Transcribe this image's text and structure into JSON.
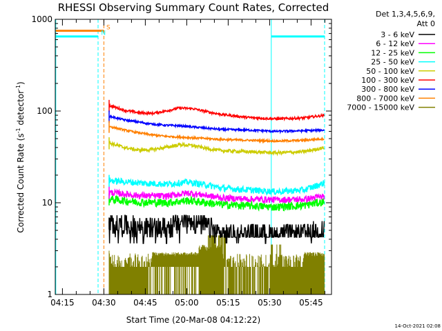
{
  "chart_data": {
    "type": "line",
    "title": "RHESSI Observing Summary Count Rates, Corrected",
    "xlabel": "Start Time (20-Mar-08 04:12:22)",
    "ylabel_parts": {
      "pre": "Corrected Count Rate (s",
      "sup1": "-1",
      "mid": " detector",
      "sup2": "-1",
      "post": ")"
    },
    "xlim_min": [
      0,
      100
    ],
    "ylim": [
      1,
      1000
    ],
    "yscale": "log",
    "x_ticks": [
      {
        "label": "04:15",
        "min": 2.6
      },
      {
        "label": "04:30",
        "min": 17.6
      },
      {
        "label": "04:45",
        "min": 32.6
      },
      {
        "label": "05:00",
        "min": 47.6
      },
      {
        "label": "05:15",
        "min": 62.6
      },
      {
        "label": "05:30",
        "min": 77.6
      },
      {
        "label": "05:45",
        "min": 92.6
      }
    ],
    "y_tick_labels": [
      {
        "label": "1",
        "value": 1
      },
      {
        "label": "10",
        "value": 10
      },
      {
        "label": "100",
        "value": 100
      },
      {
        "label": "1000",
        "value": 1000
      }
    ],
    "legend": {
      "header": [
        "Det 1,3,4,5,6,9,",
        "Att 0"
      ],
      "location": "top-right, outside plot"
    },
    "series": [
      {
        "name": "3 - 6 keV",
        "color": "#000000",
        "noise": 0.28,
        "points": [
          [
            19.5,
            6.0
          ],
          [
            30,
            5.6
          ],
          [
            40,
            5.3
          ],
          [
            48,
            6.6
          ],
          [
            55,
            5.6
          ],
          [
            60,
            4.6
          ],
          [
            70,
            4.6
          ],
          [
            80,
            4.5
          ],
          [
            90,
            4.7
          ],
          [
            97.5,
            5.0
          ]
        ]
      },
      {
        "name": "6 - 12 keV",
        "color": "#ff00ff",
        "noise": 0.08,
        "points": [
          [
            19.5,
            13.0
          ],
          [
            30,
            12.0
          ],
          [
            40,
            11.8
          ],
          [
            48,
            12.8
          ],
          [
            55,
            12.0
          ],
          [
            60,
            11.3
          ],
          [
            70,
            11.0
          ],
          [
            80,
            10.8
          ],
          [
            90,
            10.9
          ],
          [
            97.5,
            11.8
          ]
        ]
      },
      {
        "name": "12 - 25 keV",
        "color": "#00ff00",
        "noise": 0.1,
        "points": [
          [
            19.5,
            11.0
          ],
          [
            30,
            10.2
          ],
          [
            40,
            10.0
          ],
          [
            48,
            10.6
          ],
          [
            55,
            10.0
          ],
          [
            60,
            9.6
          ],
          [
            70,
            9.3
          ],
          [
            80,
            9.0
          ],
          [
            90,
            9.4
          ],
          [
            97.5,
            10.3
          ]
        ]
      },
      {
        "name": "25 - 50 keV",
        "color": "#00ffff",
        "noise": 0.08,
        "points": [
          [
            19.5,
            17.5
          ],
          [
            30,
            16.5
          ],
          [
            40,
            16.0
          ],
          [
            48,
            16.8
          ],
          [
            55,
            15.6
          ],
          [
            60,
            14.5
          ],
          [
            70,
            13.8
          ],
          [
            80,
            13.2
          ],
          [
            90,
            13.8
          ],
          [
            97.5,
            16.5
          ]
        ]
      },
      {
        "name": "50 - 100 keV",
        "color": "#cccc00",
        "noise": 0.04,
        "points": [
          [
            19.5,
            45
          ],
          [
            25,
            40
          ],
          [
            30,
            37.5
          ],
          [
            35,
            38
          ],
          [
            40,
            40
          ],
          [
            45,
            43
          ],
          [
            50,
            42
          ],
          [
            55,
            39
          ],
          [
            60,
            37
          ],
          [
            70,
            36
          ],
          [
            80,
            35
          ],
          [
            90,
            36
          ],
          [
            97.5,
            40
          ]
        ]
      },
      {
        "name": "100 - 300 keV",
        "color": "#ff0000",
        "noise": 0.03,
        "points": [
          [
            19.5,
            115
          ],
          [
            25,
            102
          ],
          [
            30,
            96
          ],
          [
            35,
            94
          ],
          [
            40,
            100
          ],
          [
            45,
            108
          ],
          [
            50,
            106
          ],
          [
            55,
            98
          ],
          [
            60,
            92
          ],
          [
            70,
            85
          ],
          [
            80,
            82
          ],
          [
            90,
            84
          ],
          [
            97.5,
            90
          ]
        ]
      },
      {
        "name": "300 - 800 keV",
        "color": "#0000ff",
        "noise": 0.025,
        "points": [
          [
            19.5,
            88
          ],
          [
            25,
            80
          ],
          [
            30,
            76
          ],
          [
            35,
            72
          ],
          [
            40,
            70
          ],
          [
            45,
            69
          ],
          [
            50,
            67
          ],
          [
            60,
            63
          ],
          [
            70,
            62
          ],
          [
            80,
            60
          ],
          [
            90,
            61
          ],
          [
            97.5,
            62
          ]
        ]
      },
      {
        "name": "800 - 7000 keV",
        "color": "#ff8000",
        "noise": 0.025,
        "points": [
          [
            19.5,
            68
          ],
          [
            25,
            62
          ],
          [
            30,
            58
          ],
          [
            35,
            55
          ],
          [
            40,
            53
          ],
          [
            45,
            52
          ],
          [
            50,
            51
          ],
          [
            60,
            49
          ],
          [
            70,
            48
          ],
          [
            80,
            47
          ],
          [
            90,
            48
          ],
          [
            97.5,
            50
          ]
        ]
      },
      {
        "name": "7000 - 15000 keV",
        "color": "#808000",
        "noise": 0,
        "points": [
          [
            19.5,
            2.0
          ],
          [
            97.5,
            2.0
          ]
        ]
      }
    ],
    "vertical_lines": [
      {
        "min": 0.2,
        "color": "#00ffff",
        "style": "solid"
      },
      {
        "min": 15.5,
        "color": "#00ffff",
        "style": "dashed"
      },
      {
        "min": 17.6,
        "color": "#ff8000",
        "style": "dashed"
      },
      {
        "min": 78.2,
        "color": "#00ffff",
        "style": "solid"
      },
      {
        "min": 97.5,
        "color": "#00ffff",
        "style": "dashed"
      }
    ],
    "top_segments": [
      {
        "x0": 0.2,
        "x1": 15.5,
        "value": 650,
        "color": "#00ffff"
      },
      {
        "x0": 0.2,
        "x1": 17.6,
        "value": 750,
        "color": "#ff8000"
      },
      {
        "x0": 78.2,
        "x1": 97.5,
        "value": 650,
        "color": "#00ffff"
      }
    ],
    "markers": [
      {
        "label": "S",
        "color": "#ff8000",
        "min": 18.5,
        "value": 780
      },
      {
        "label": "N",
        "color": "#00ffff",
        "min": 16.6,
        "value": 680
      }
    ]
  },
  "timestamp": "14-Oct-2021 02:08"
}
